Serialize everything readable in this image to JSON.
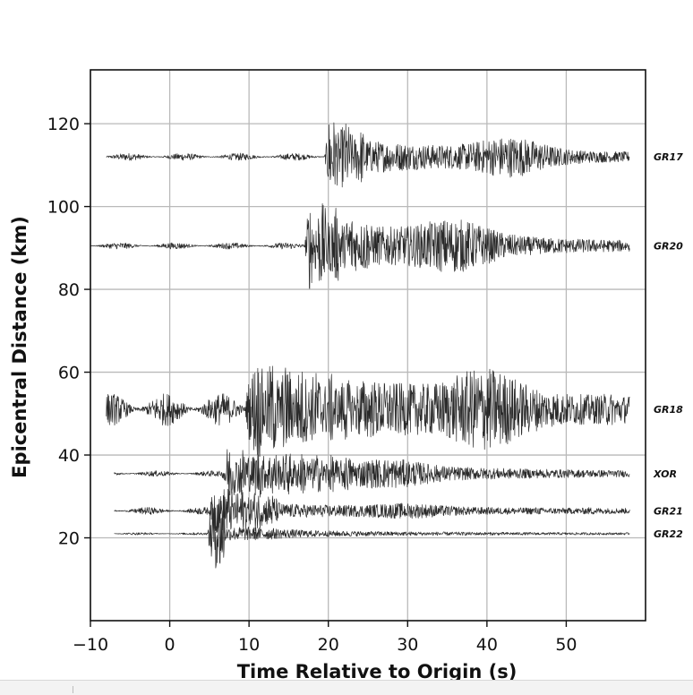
{
  "chart_data": {
    "type": "line",
    "title": "",
    "xlabel": "Time Relative to Origin (s)",
    "ylabel": "Epicentral Distance (km)",
    "xlim": [
      -10,
      60
    ],
    "ylim": [
      0,
      133
    ],
    "xticks": [
      -10,
      0,
      10,
      20,
      30,
      40,
      50
    ],
    "xtick_labels": [
      "−10",
      "0",
      "10",
      "20",
      "30",
      "40",
      "50"
    ],
    "yticks": [
      20,
      40,
      60,
      80,
      100,
      120
    ],
    "ytick_labels": [
      "20",
      "40",
      "60",
      "80",
      "100",
      "120"
    ],
    "grid": true,
    "series": [
      {
        "name": "GR17",
        "distance": 112,
        "t_start": -8,
        "t_end": 58,
        "arrival": 19.5,
        "noise_amp": 0.9,
        "peak_amp": 11,
        "peak_end": 25,
        "coda_amp": 3.5,
        "late_bump": 43,
        "late_amp": 3.0
      },
      {
        "name": "GR20",
        "distance": 90.5,
        "t_start": -10,
        "t_end": 58,
        "arrival": 17,
        "noise_amp": 0.8,
        "peak_amp": 12,
        "peak_end": 25,
        "coda_amp": 4.5,
        "late_bump": 36,
        "late_amp": 3.5
      },
      {
        "name": "GR18",
        "distance": 51,
        "t_start": -8,
        "t_end": 58,
        "arrival": 9.5,
        "noise_amp": 4.0,
        "peak_amp": 13,
        "peak_end": 24,
        "coda_amp": 5.0,
        "late_bump": 40,
        "late_amp": 5.5
      },
      {
        "name": "XOR",
        "distance": 35.5,
        "t_start": -7,
        "t_end": 58,
        "arrival": 6.5,
        "noise_amp": 0.7,
        "peak_amp": 7,
        "peak_end": 23,
        "coda_amp": 2.2,
        "late_bump": 28,
        "late_amp": 1.5
      },
      {
        "name": "GR21",
        "distance": 26.5,
        "t_start": -7,
        "t_end": 58,
        "arrival": 5.0,
        "noise_amp": 0.9,
        "peak_amp": 7,
        "peak_end": 14,
        "coda_amp": 1.2,
        "late_bump": 30,
        "late_amp": 0.8
      },
      {
        "name": "GR22",
        "distance": 21,
        "t_start": -7,
        "t_end": 58,
        "arrival": 4.8,
        "noise_amp": 0.3,
        "peak_amp": 14,
        "peak_end": 7,
        "coda_amp": 1.0,
        "late_bump": 10,
        "late_amp": 0.6
      }
    ]
  }
}
